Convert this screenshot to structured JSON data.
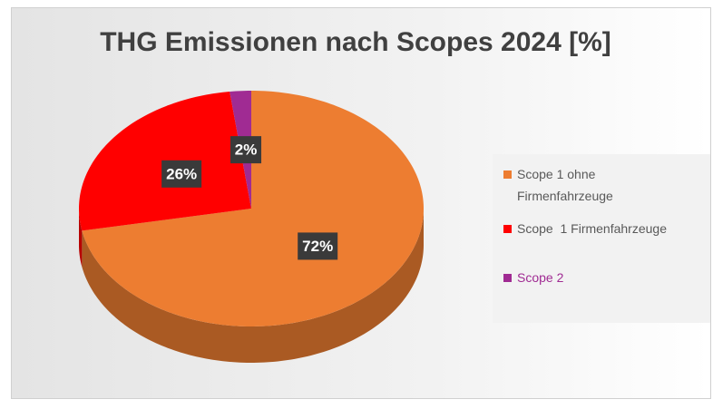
{
  "chart_data": {
    "type": "pie",
    "title": "THG Emissionen nach Scopes 2024 [%]",
    "categories": [
      "Scope 1 ohne Firmenfahrzeuge",
      "Scope  1 Firmenfahrzeuge",
      "Scope 2"
    ],
    "values": [
      72,
      26,
      2
    ],
    "value_labels": [
      "72%",
      "26%",
      "2%"
    ],
    "colors": [
      "#ED7D31",
      "#FF0000",
      "#A02B93"
    ],
    "legend": "right"
  }
}
